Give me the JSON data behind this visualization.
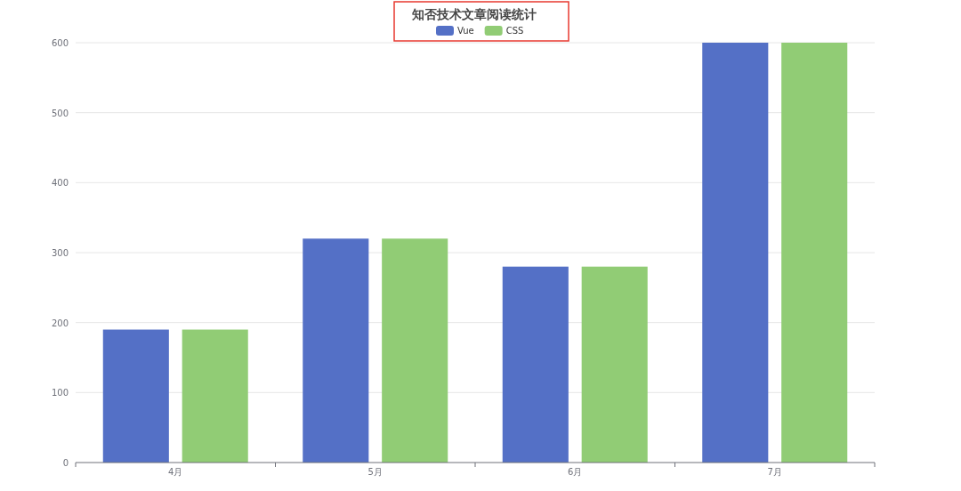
{
  "chart_data": {
    "type": "bar",
    "title": "知否技术文章阅读统计",
    "categories": [
      "4月",
      "5月",
      "6月",
      "7月"
    ],
    "series": [
      {
        "name": "Vue",
        "color": "#5470c6",
        "values": [
          190,
          320,
          280,
          600
        ]
      },
      {
        "name": "CSS",
        "color": "#91cc75",
        "values": [
          190,
          320,
          280,
          600
        ]
      }
    ],
    "ylim": [
      0,
      600
    ],
    "yticks": [
      0,
      100,
      200,
      300,
      400,
      500,
      600
    ],
    "grid": "y",
    "legend": "top"
  }
}
